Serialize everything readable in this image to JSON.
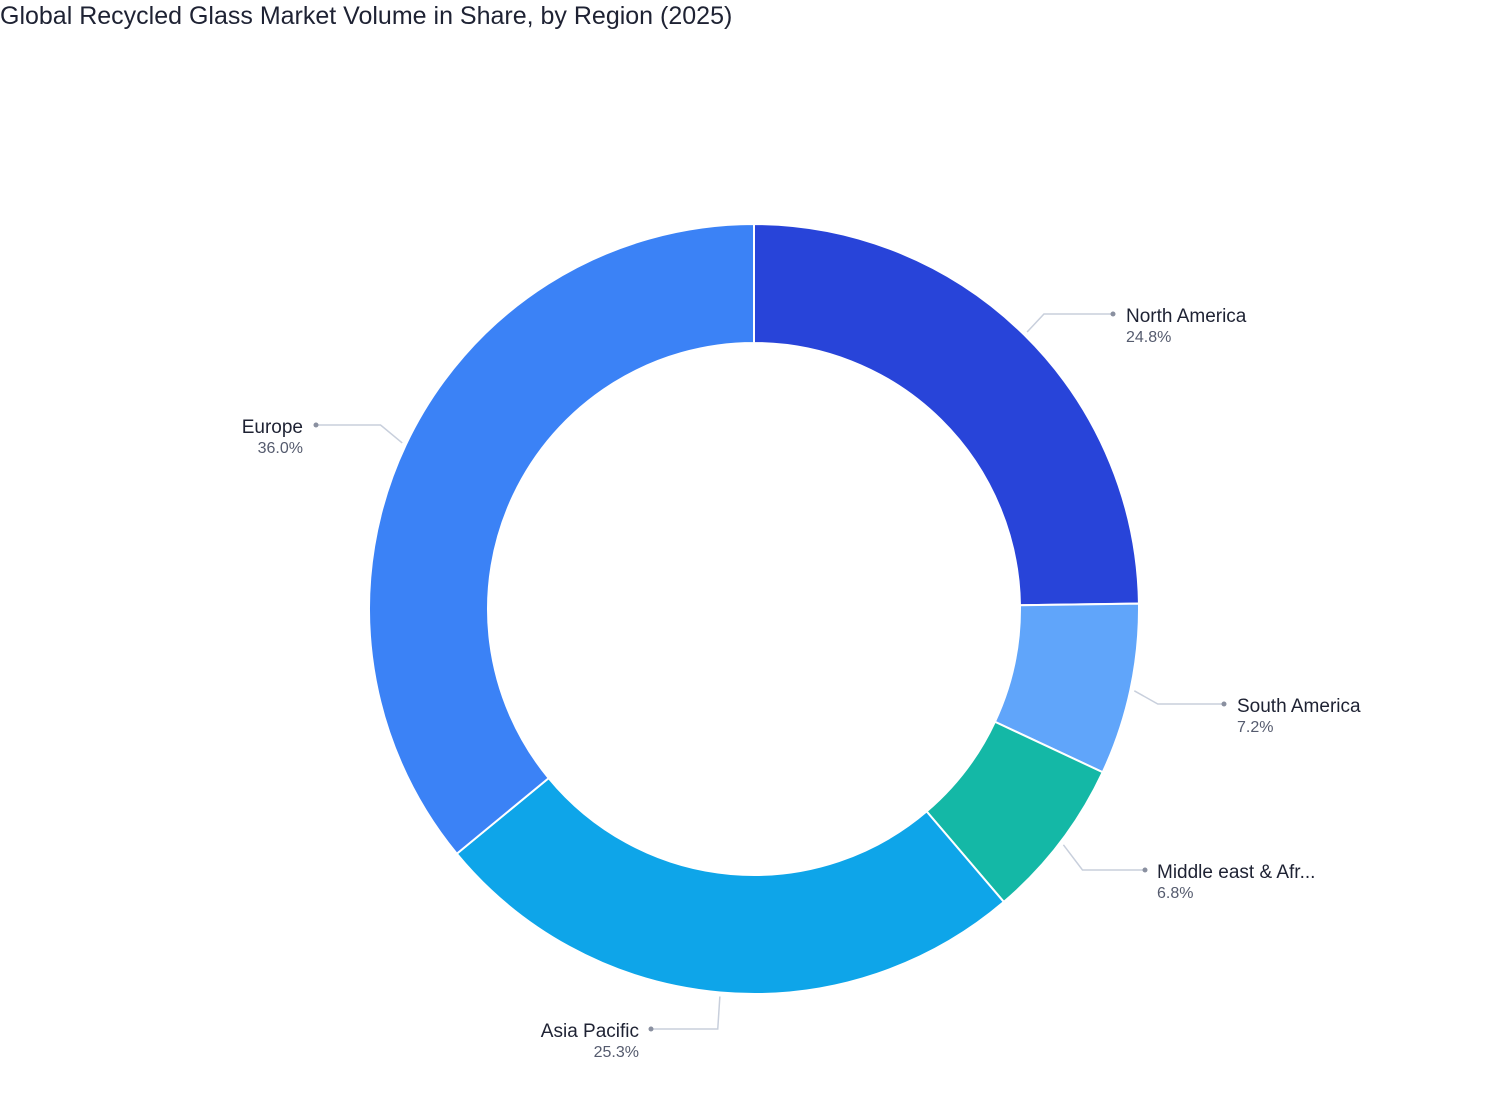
{
  "chart_data": {
    "type": "pie",
    "title": "Global Recycled Glass Market Volume in Share, by Region (2025)",
    "categories": [
      "North America",
      "South America",
      "Middle east & Afr...",
      "Asia Pacific",
      "Europe"
    ],
    "values": [
      24.8,
      7.2,
      6.8,
      25.3,
      36.0
    ],
    "value_labels": [
      "24.8%",
      "7.2%",
      "6.8%",
      "25.3%",
      "36.0%"
    ],
    "colors": [
      "#2844d9",
      "#60a5fa",
      "#14b8a6",
      "#0ea5e9",
      "#3b82f6"
    ],
    "hole": true
  }
}
